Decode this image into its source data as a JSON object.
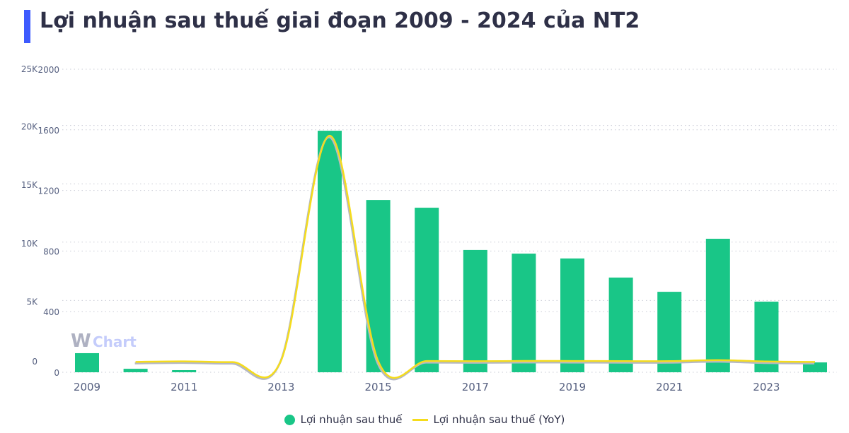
{
  "title": "Lợi nhuận sau thuế giai đoạn 2009 - 2024 của NT2",
  "colors": {
    "accent": "#3d5afe",
    "bar": "#19c687",
    "line": "#f5dc1c"
  },
  "watermark": "WiChart",
  "chart_data": {
    "type": "bar+line",
    "categories": [
      "2009",
      "2010",
      "2011",
      "2012",
      "2013",
      "2014",
      "2015",
      "2016",
      "2017",
      "2018",
      "2019",
      "2020",
      "2021",
      "2022",
      "2023",
      "2024"
    ],
    "x_tick_labels": [
      "2009",
      "2011",
      "2013",
      "2015",
      "2017",
      "2019",
      "2021",
      "2023"
    ],
    "series": [
      {
        "name": "Lợi nhuận sau thuế",
        "type": "bar",
        "axis": "inner-left",
        "values": [
          126,
          23,
          14,
          0,
          0,
          1594,
          1137,
          1086,
          807,
          783,
          751,
          625,
          531,
          881,
          466,
          65
        ]
      },
      {
        "name": "Lợi nhuận sau thuế (YoY)",
        "type": "line",
        "axis": "outer-left",
        "values": [
          null,
          -82,
          -39,
          -100,
          60,
          19300,
          -29,
          -4,
          -26,
          -3,
          -4,
          -17,
          -15,
          66,
          -47,
          -86
        ]
      }
    ],
    "y_axis_bar": {
      "ylim": [
        0,
        2000
      ],
      "ticks": [
        "0",
        "400",
        "800",
        "1200",
        "1600",
        "2000"
      ]
    },
    "y_axis_line": {
      "ylim": [
        0,
        25000
      ],
      "ticks": [
        "0",
        "5K",
        "10K",
        "15K",
        "20K",
        "25K"
      ]
    },
    "grid": true,
    "legend": "bottom"
  }
}
